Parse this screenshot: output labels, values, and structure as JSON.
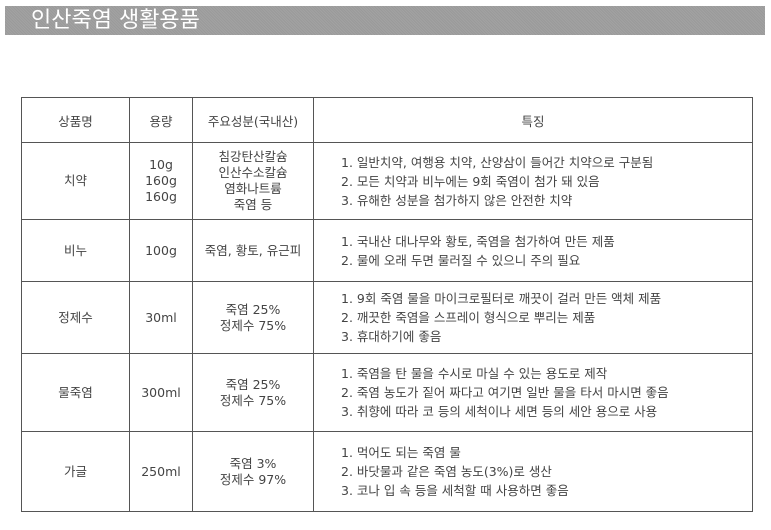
{
  "title": "인산죽염 생활용품",
  "headers": [
    "상품명",
    "용량",
    "주요성분(국내산)",
    "특징"
  ],
  "rows": [
    {
      "name": "치약",
      "volume": [
        "10g",
        "160g",
        "160g"
      ],
      "ingredients": [
        "침강탄산칼슘",
        "인산수소칼슘",
        "염화나트륨",
        "죽염 등"
      ],
      "features": [
        "1. 일반치약, 여행용 치약, 산양삼이 들어간 치약으로 구분됨",
        "2. 모든 치약과 비누에는 9회 죽염이 첨가 돼 있음",
        "3. 유해한 성분을 첨가하지 않은 안전한 치약"
      ]
    },
    {
      "name": "비누",
      "volume": [
        "100g"
      ],
      "ingredients": [
        "죽염, 황토, 유근피"
      ],
      "features": [
        "1. 국내산 대나무와 황토, 죽염을 첨가하여 만든 제품",
        "2. 물에 오래 두면 물러질 수 있으니 주의 필요"
      ]
    },
    {
      "name": "정제수",
      "volume": [
        "30ml"
      ],
      "ingredients": [
        "죽염 25%",
        "정제수 75%"
      ],
      "features": [
        "1. 9회 죽염 물을 마이크로필터로 깨끗이 걸러 만든 액체 제품",
        "2. 깨끗한 죽염을 스프레이 형식으로 뿌리는 제품",
        "3. 휴대하기에 좋음"
      ]
    },
    {
      "name": "물죽염",
      "volume": [
        "300ml"
      ],
      "ingredients": [
        "죽염 25%",
        "정제수 75%"
      ],
      "features": [
        "1. 죽염을 탄 물을 수시로 마실 수 있는 용도로 제작",
        "2. 죽염 농도가 짙어 짜다고 여기면 일반 물을 타서 마시면 좋음",
        "3. 취향에 따라 코 등의 세척이나 세면 등의 세안 용으로 사용"
      ]
    },
    {
      "name": "가글",
      "volume": [
        "250ml"
      ],
      "ingredients": [
        "죽염 3%",
        "정제수 97%"
      ],
      "features": [
        "1. 먹어도 되는 죽염 물",
        "2. 바닷물과 같은 죽염 농도(3%)로 생산",
        "3. 코나 입 속 등을 세척할 때 사용하면 좋음"
      ]
    }
  ]
}
